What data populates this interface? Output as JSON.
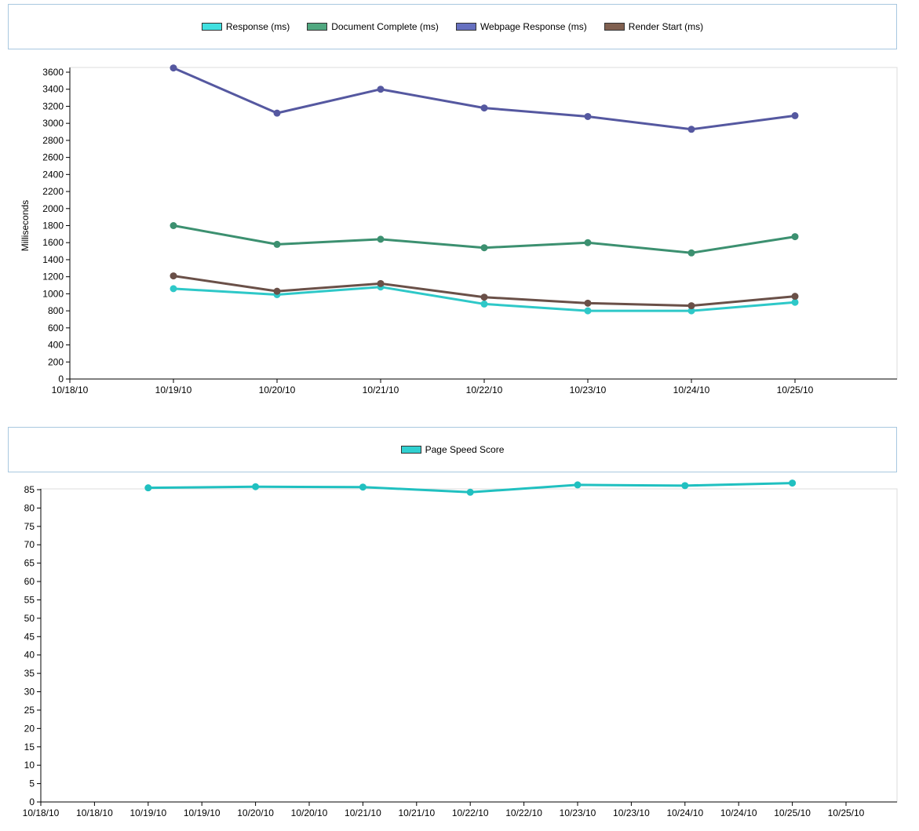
{
  "chart_data": [
    {
      "type": "line",
      "ylabel": "Milliseconds",
      "categories": [
        "10/18/10",
        "10/19/10",
        "10/20/10",
        "10/21/10",
        "10/22/10",
        "10/23/10",
        "10/24/10",
        "10/25/10"
      ],
      "x_tick_labels": [
        "10/18/10",
        "10/19/10",
        "10/20/10",
        "10/21/10",
        "10/22/10",
        "10/23/10",
        "10/24/10",
        "10/25/10"
      ],
      "ylim": [
        0,
        3600
      ],
      "y_ticks": [
        0,
        200,
        400,
        600,
        800,
        1000,
        1200,
        1400,
        1600,
        1800,
        2000,
        2200,
        2400,
        2600,
        2800,
        3000,
        3200,
        3400,
        3600
      ],
      "grid": false,
      "legend_position": "top-center",
      "series": [
        {
          "name": "Response (ms)",
          "color": "#2ec8c8",
          "legend_color": "#40e0e0",
          "x": [
            "10/19/10",
            "10/20/10",
            "10/21/10",
            "10/22/10",
            "10/23/10",
            "10/24/10",
            "10/25/10"
          ],
          "values": [
            1060,
            990,
            1080,
            880,
            800,
            800,
            900
          ]
        },
        {
          "name": "Document Complete (ms)",
          "color": "#3c9070",
          "legend_color": "#50a880",
          "x": [
            "10/19/10",
            "10/20/10",
            "10/21/10",
            "10/22/10",
            "10/23/10",
            "10/24/10",
            "10/25/10"
          ],
          "values": [
            1800,
            1580,
            1640,
            1540,
            1600,
            1480,
            1670
          ]
        },
        {
          "name": "Webpage Response (ms)",
          "color": "#5558a0",
          "legend_color": "#6670c0",
          "x": [
            "10/19/10",
            "10/20/10",
            "10/21/10",
            "10/22/10",
            "10/23/10",
            "10/24/10",
            "10/25/10"
          ],
          "values": [
            3650,
            3120,
            3400,
            3180,
            3080,
            2930,
            3090
          ]
        },
        {
          "name": "Render Start (ms)",
          "color": "#6a5048",
          "legend_color": "#806050",
          "x": [
            "10/19/10",
            "10/20/10",
            "10/21/10",
            "10/22/10",
            "10/23/10",
            "10/24/10",
            "10/25/10"
          ],
          "values": [
            1210,
            1030,
            1120,
            960,
            890,
            860,
            970
          ]
        }
      ]
    },
    {
      "type": "line",
      "ylabel": "",
      "x_tick_labels": [
        "10/18/10",
        "10/18/10",
        "10/19/10",
        "10/19/10",
        "10/20/10",
        "10/20/10",
        "10/21/10",
        "10/21/10",
        "10/22/10",
        "10/22/10",
        "10/23/10",
        "10/23/10",
        "10/24/10",
        "10/24/10",
        "10/25/10",
        "10/25/10"
      ],
      "ylim": [
        0,
        85
      ],
      "y_ticks": [
        0,
        5,
        10,
        15,
        20,
        25,
        30,
        35,
        40,
        45,
        50,
        55,
        60,
        65,
        70,
        75,
        80,
        85
      ],
      "grid": false,
      "legend_position": "top-center",
      "series": [
        {
          "name": "Page Speed Score",
          "color": "#20c0c0",
          "legend_color": "#30d0d0",
          "x_index": [
            2,
            4,
            6,
            8,
            10,
            12,
            14
          ],
          "values": [
            85.5,
            85.8,
            85.7,
            84.3,
            86.3,
            86.1,
            86.8
          ]
        }
      ]
    }
  ]
}
